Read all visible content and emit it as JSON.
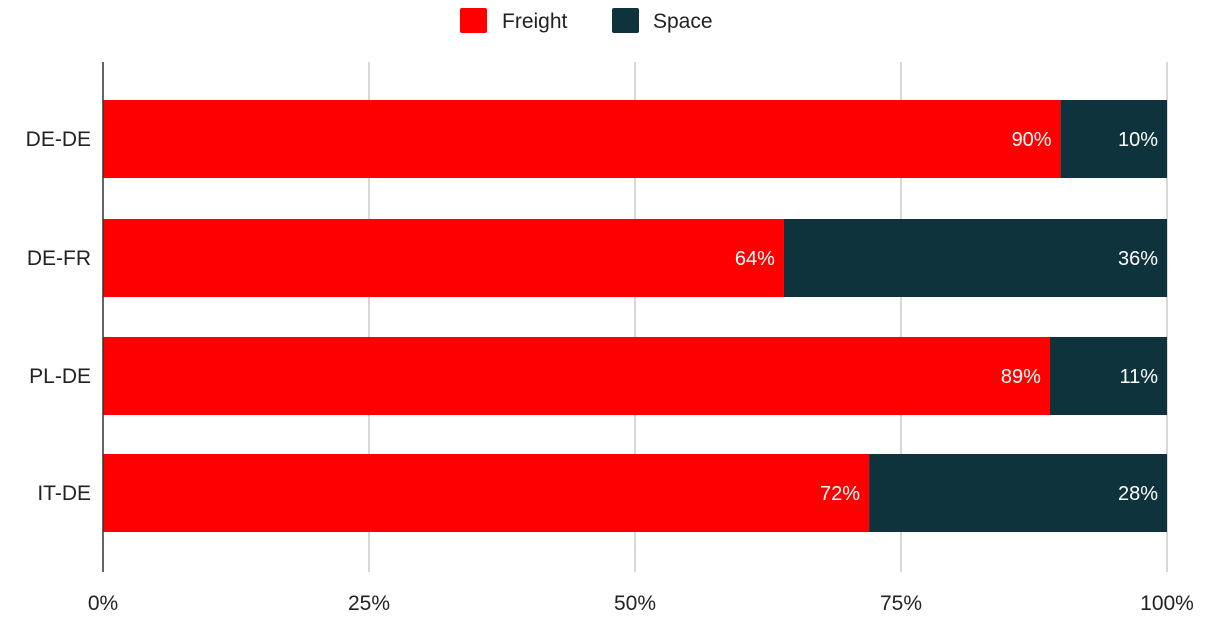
{
  "chart_data": {
    "type": "bar",
    "orientation": "horizontal",
    "stacked": true,
    "normalized": true,
    "categories": [
      "DE-DE",
      "DE-FR",
      "PL-DE",
      "IT-DE"
    ],
    "series": [
      {
        "name": "Freight",
        "color": "#ff0000",
        "values": [
          90,
          64,
          89,
          72
        ],
        "labels": [
          "90%",
          "64%",
          "89%",
          "72%"
        ]
      },
      {
        "name": "Space",
        "color": "#0f333c",
        "values": [
          10,
          36,
          11,
          28
        ],
        "labels": [
          "10%",
          "36%",
          "11%",
          "28%"
        ]
      }
    ],
    "xlim": [
      0,
      100
    ],
    "xticks": [
      0,
      25,
      50,
      75,
      100
    ],
    "xtick_labels": [
      "0%",
      "25%",
      "50%",
      "75%",
      "100%"
    ],
    "title": "",
    "xlabel": "",
    "ylabel": "",
    "grid": "vertical",
    "legend": "top-center",
    "data_label_color": "#ffffff",
    "grid_color": "#cccccc",
    "axis_color": "#333333",
    "text_color": "#222222"
  }
}
